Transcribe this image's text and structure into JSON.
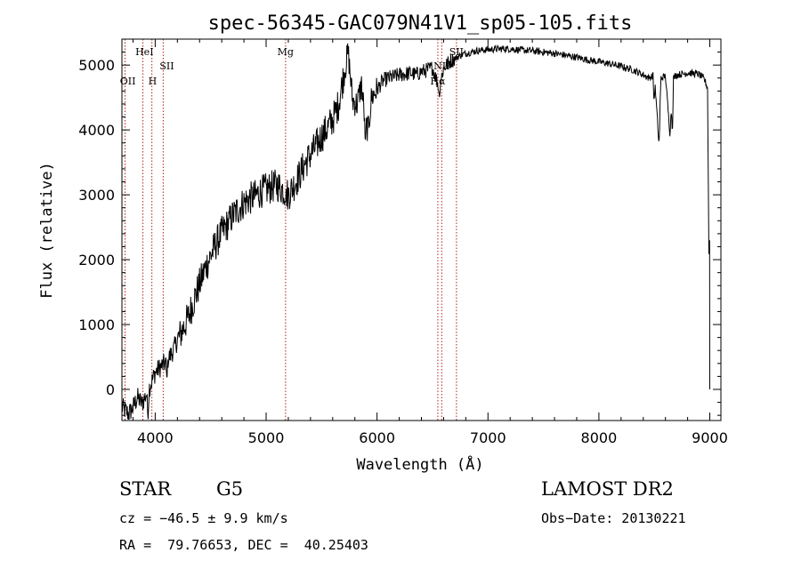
{
  "chart_data": {
    "type": "line",
    "title": "spec-56345-GAC079N41V1_sp05-105.fits",
    "xlabel": "Wavelength (Å)",
    "ylabel": "Flux (relative)",
    "xlim": [
      3700,
      9100
    ],
    "ylim": [
      -480,
      5400
    ],
    "xticks": [
      4000,
      5000,
      6000,
      7000,
      8000,
      9000
    ],
    "yticks": [
      0,
      1000,
      2000,
      3000,
      4000,
      5000
    ],
    "spectrum_anchor_points": [
      [
        3700,
        -280
      ],
      [
        3730,
        -320
      ],
      [
        3760,
        -380
      ],
      [
        3800,
        -280
      ],
      [
        3840,
        -120
      ],
      [
        3880,
        -220
      ],
      [
        3920,
        -80
      ],
      [
        3960,
        80
      ],
      [
        4000,
        260
      ],
      [
        4050,
        350
      ],
      [
        4100,
        420
      ],
      [
        4150,
        560
      ],
      [
        4200,
        750
      ],
      [
        4250,
        930
      ],
      [
        4300,
        1120
      ],
      [
        4350,
        1380
      ],
      [
        4400,
        1620
      ],
      [
        4450,
        1860
      ],
      [
        4500,
        2060
      ],
      [
        4550,
        2250
      ],
      [
        4600,
        2420
      ],
      [
        4650,
        2540
      ],
      [
        4700,
        2680
      ],
      [
        4750,
        2780
      ],
      [
        4800,
        2880
      ],
      [
        4850,
        2940
      ],
      [
        4900,
        2980
      ],
      [
        4950,
        3050
      ],
      [
        5000,
        3080
      ],
      [
        5050,
        3120
      ],
      [
        5100,
        3150
      ],
      [
        5150,
        3080
      ],
      [
        5200,
        3000
      ],
      [
        5250,
        3150
      ],
      [
        5300,
        3300
      ],
      [
        5350,
        3480
      ],
      [
        5400,
        3620
      ],
      [
        5450,
        3750
      ],
      [
        5500,
        3900
      ],
      [
        5550,
        4020
      ],
      [
        5600,
        4160
      ],
      [
        5650,
        4380
      ],
      [
        5700,
        4850
      ],
      [
        5740,
        5200
      ],
      [
        5780,
        4450
      ],
      [
        5820,
        4400
      ],
      [
        5860,
        4700
      ],
      [
        5890,
        4150
      ],
      [
        5920,
        4000
      ],
      [
        5950,
        4500
      ],
      [
        6000,
        4620
      ],
      [
        6050,
        4750
      ],
      [
        6100,
        4800
      ],
      [
        6150,
        4820
      ],
      [
        6200,
        4850
      ],
      [
        6250,
        4860
      ],
      [
        6300,
        4880
      ],
      [
        6350,
        4850
      ],
      [
        6400,
        4900
      ],
      [
        6450,
        4920
      ],
      [
        6500,
        4960
      ],
      [
        6560,
        4650
      ],
      [
        6600,
        4950
      ],
      [
        6650,
        5050
      ],
      [
        6700,
        5100
      ],
      [
        6750,
        5150
      ],
      [
        6800,
        5180
      ],
      [
        6850,
        5200
      ],
      [
        6900,
        5220
      ],
      [
        7000,
        5240
      ],
      [
        7100,
        5250
      ],
      [
        7200,
        5250
      ],
      [
        7300,
        5230
      ],
      [
        7400,
        5220
      ],
      [
        7500,
        5200
      ],
      [
        7600,
        5180
      ],
      [
        7700,
        5150
      ],
      [
        7800,
        5120
      ],
      [
        7900,
        5080
      ],
      [
        8000,
        5050
      ],
      [
        8100,
        5020
      ],
      [
        8200,
        4980
      ],
      [
        8300,
        4930
      ],
      [
        8400,
        4850
      ],
      [
        8450,
        4800
      ],
      [
        8500,
        4850
      ],
      [
        8540,
        3850
      ],
      [
        8560,
        4800
      ],
      [
        8600,
        4830
      ],
      [
        8640,
        3950
      ],
      [
        8670,
        4800
      ],
      [
        8700,
        4850
      ],
      [
        8750,
        4860
      ],
      [
        8800,
        4880
      ],
      [
        8850,
        4870
      ],
      [
        8900,
        4860
      ],
      [
        8950,
        4780
      ],
      [
        8980,
        4650
      ],
      [
        8995,
        1500
      ],
      [
        9000,
        0
      ]
    ],
    "noise_level": 260,
    "absorption_dips": [
      [
        3935,
        -500
      ],
      [
        4105,
        150
      ],
      [
        5174,
        2900
      ],
      [
        5895,
        3800
      ],
      [
        6563,
        4500
      ],
      [
        8498,
        4400
      ],
      [
        8542,
        3820
      ],
      [
        8662,
        3900
      ]
    ],
    "line_markers": [
      {
        "wavelength": 3728,
        "label": "OII",
        "row": 3,
        "side": "left"
      },
      {
        "wavelength": 3889,
        "label": "HeI",
        "row": 1,
        "side": "left"
      },
      {
        "wavelength": 3970,
        "label": "H",
        "row": 3,
        "side": "right"
      },
      {
        "wavelength": 4072,
        "label": "SII",
        "row": 2,
        "side": "right"
      },
      {
        "wavelength": 5175,
        "label": "Mg",
        "row": 1,
        "side": "center"
      },
      {
        "wavelength": 6548,
        "label": "Hα",
        "row": 3,
        "side": "center"
      },
      {
        "wavelength": 6583,
        "label": "NII",
        "row": 2,
        "side": "center"
      },
      {
        "wavelength": 6716,
        "label": "SII",
        "row": 1,
        "side": "center"
      }
    ],
    "marker_color": "#b22222",
    "line_color": "#000000"
  },
  "info": {
    "object_class": "STAR",
    "subclass": "G5",
    "survey": "LAMOST DR2",
    "velocity": "cz = −46.5 ± 9.9 km/s",
    "obs_date": "Obs−Date: 20130221",
    "coords": "RA =  79.76653, DEC =  40.25403"
  }
}
